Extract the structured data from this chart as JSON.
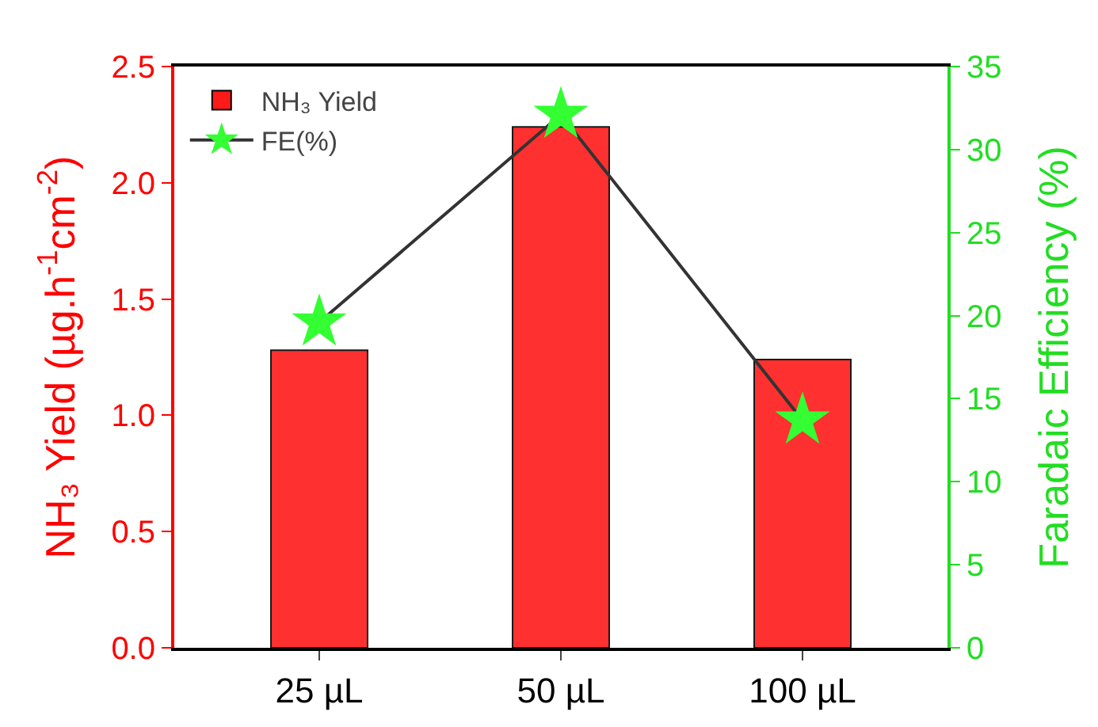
{
  "chart_data": {
    "type": "bar",
    "categories": [
      "25 µL",
      "50 µL",
      "100 µL"
    ],
    "ylabel": "NH₃ Yield (µg.h$^{-1}$cm$^{-2}$)",
    "y2label": "Faradaic Efficiency (%)",
    "ylim": [
      0,
      2.5
    ],
    "yticks": [
      {
        "value": 0,
        "label": "0.0"
      },
      0.5,
      {
        "value": 1,
        "label": "1.0"
      },
      1.5,
      {
        "value": 2,
        "label": "2.0"
      },
      2.5
    ],
    "y2lim": [
      0,
      35
    ],
    "y2ticks": [
      0,
      5,
      10,
      15,
      20,
      25,
      30,
      35
    ],
    "legend": "top left",
    "grid": false,
    "series": [
      {
        "name": "NH₃ Yield",
        "color": "#ff1a1a",
        "values": [
          1.28,
          2.24,
          1.24
        ]
      },
      {
        "name": "FE(%)",
        "type": "line",
        "axis": "y2",
        "color": "#33ff33",
        "marker": "star",
        "values": [
          19.6,
          32.1,
          13.7
        ]
      }
    ]
  }
}
